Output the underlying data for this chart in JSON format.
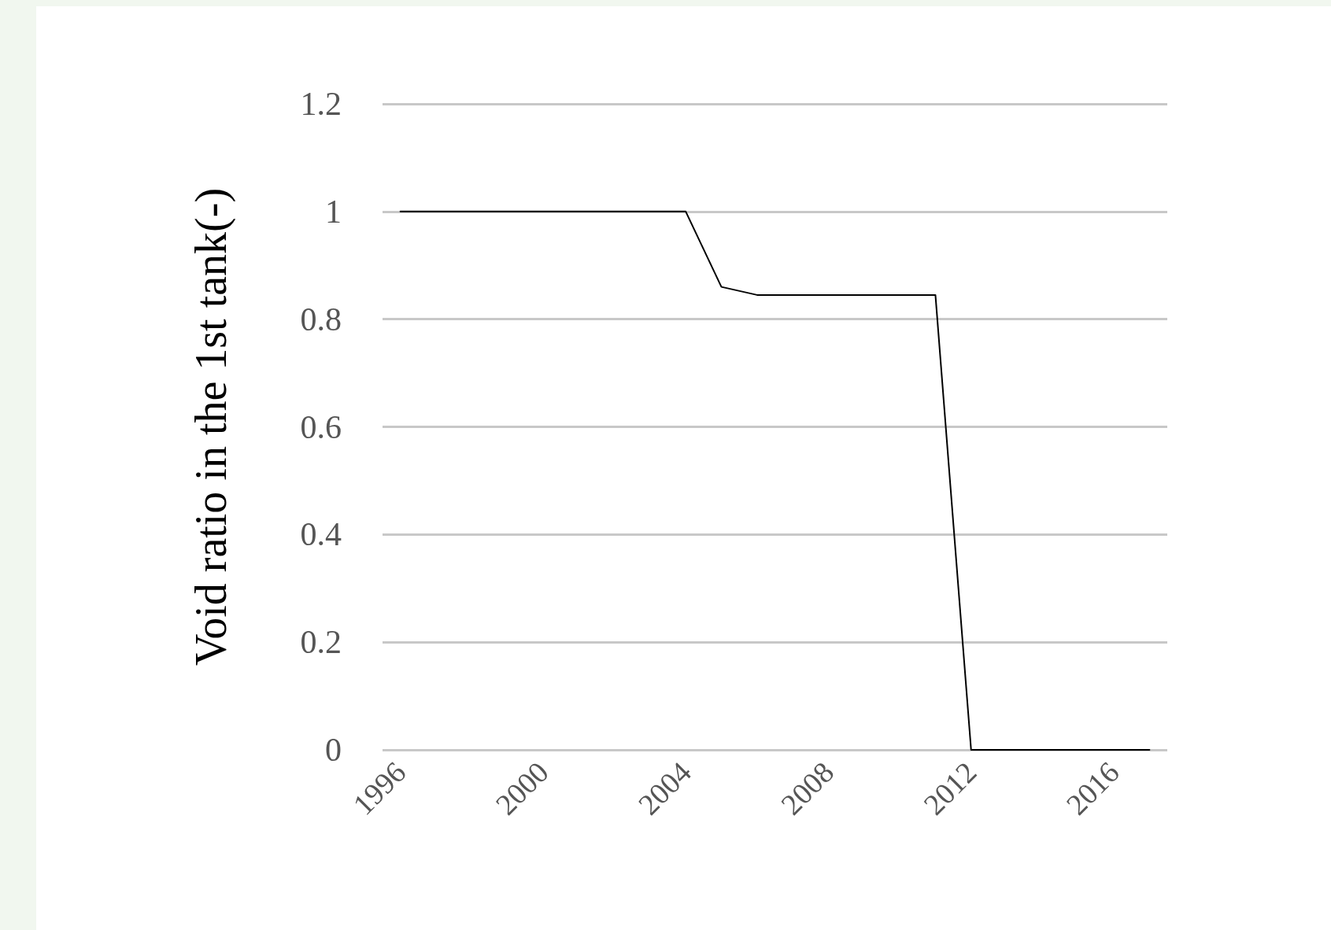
{
  "chart_data": {
    "type": "line",
    "ylabel": "Void ratio in the 1st tank(-)",
    "x": [
      1996,
      1997,
      1998,
      1999,
      2000,
      2001,
      2002,
      2003,
      2004,
      2005,
      2006,
      2007,
      2008,
      2009,
      2010,
      2011,
      2012,
      2013,
      2014,
      2015,
      2016,
      2017
    ],
    "series": [
      {
        "color": "#000000",
        "values": [
          1,
          1,
          1,
          1,
          1,
          1,
          1,
          1,
          1,
          0.86,
          0.845,
          0.845,
          0.845,
          0.845,
          0.845,
          0.845,
          0,
          0,
          0,
          0,
          0,
          0
        ]
      }
    ],
    "xlim": [
      1995.5,
      2017.5
    ],
    "xticks": [
      1996,
      2000,
      2004,
      2008,
      2012,
      2016
    ],
    "ylim": [
      0,
      1.2
    ],
    "yticks": [
      0,
      0.2,
      0.4,
      0.6,
      0.8,
      1,
      1.2
    ],
    "grid": "y",
    "marker": "none",
    "line_style": "solid"
  }
}
